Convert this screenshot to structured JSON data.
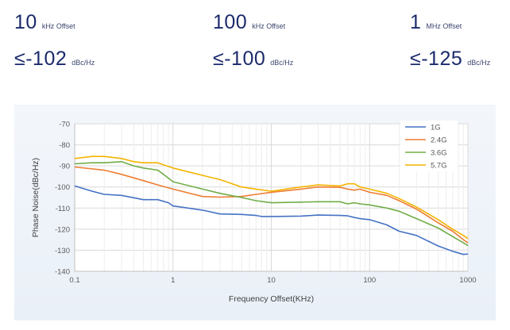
{
  "specs": [
    {
      "offset_value": "10",
      "offset_unit": "kHz Offset",
      "noise_value": "≤-102",
      "noise_unit": "dBc/Hz"
    },
    {
      "offset_value": "100",
      "offset_unit": "kHz Offset",
      "noise_value": "≤-100",
      "noise_unit": "dBc/Hz"
    },
    {
      "offset_value": "1",
      "offset_unit": "MHz Offset",
      "noise_value": "≤-125",
      "noise_unit": "dBc/Hz"
    }
  ],
  "chart_data": {
    "type": "line",
    "title": "",
    "xlabel": "Frequency Offset(KHz)",
    "ylabel": "Phase Noise(dBc/Hz)",
    "x_scale": "log",
    "xlim": [
      0.1,
      1000
    ],
    "ylim": [
      -140,
      -70
    ],
    "x_ticks": [
      "0.1",
      "1",
      "10",
      "100",
      "1000"
    ],
    "y_ticks": [
      "-70",
      "-80",
      "-90",
      "-100",
      "-110",
      "-120",
      "-130",
      "-140"
    ],
    "grid": true,
    "legend_position": "top-right",
    "series": [
      {
        "name": "1G",
        "color": "#4472c4",
        "x": [
          0.1,
          0.15,
          0.2,
          0.3,
          0.5,
          0.7,
          0.9,
          1,
          2,
          3,
          5,
          7,
          8,
          10,
          20,
          30,
          50,
          60,
          70,
          80,
          100,
          150,
          200,
          300,
          500,
          700,
          900,
          1000
        ],
        "y": [
          -99.5,
          -102,
          -103.5,
          -104,
          -106,
          -106,
          -107.5,
          -109,
          -111,
          -112.8,
          -113,
          -113.5,
          -114,
          -114,
          -113.8,
          -113.3,
          -113.5,
          -113.7,
          -114.5,
          -115,
          -115.5,
          -118,
          -121,
          -123,
          -128,
          -130.5,
          -132,
          -131.8
        ]
      },
      {
        "name": "2.4G",
        "color": "#ed7d31",
        "x": [
          0.1,
          0.2,
          0.3,
          0.5,
          0.7,
          1,
          2,
          3,
          5,
          7,
          10,
          20,
          30,
          50,
          60,
          70,
          80,
          100,
          150,
          200,
          300,
          500,
          700,
          900,
          1000
        ],
        "y": [
          -90.5,
          -92,
          -94,
          -97,
          -99,
          -101,
          -104.5,
          -104.8,
          -104.5,
          -103.5,
          -102.5,
          -101,
          -100,
          -100.2,
          -101,
          -101.5,
          -101,
          -102.5,
          -104,
          -106.5,
          -110.5,
          -117,
          -121,
          -125,
          -126.5
        ]
      },
      {
        "name": "3.6G",
        "color": "#70ad47",
        "x": [
          0.1,
          0.15,
          0.2,
          0.3,
          0.4,
          0.5,
          0.7,
          0.8,
          1,
          2,
          3,
          5,
          7,
          10,
          20,
          30,
          50,
          60,
          70,
          80,
          100,
          150,
          200,
          300,
          500,
          700,
          900,
          1000
        ],
        "y": [
          -89,
          -88.5,
          -88.5,
          -88,
          -90,
          -91,
          -92,
          -94,
          -97.5,
          -101,
          -103,
          -105,
          -106.5,
          -107.5,
          -107.2,
          -107,
          -107,
          -108,
          -107.5,
          -108,
          -108.5,
          -110,
          -111.5,
          -115,
          -119.5,
          -123.5,
          -126.5,
          -127.8
        ]
      },
      {
        "name": "5.7G",
        "color": "#f4b400",
        "x": [
          0.1,
          0.15,
          0.2,
          0.3,
          0.4,
          0.5,
          0.7,
          0.8,
          1,
          2,
          3,
          5,
          7,
          10,
          20,
          30,
          50,
          60,
          70,
          80,
          100,
          150,
          200,
          300,
          500,
          700,
          900,
          1000
        ],
        "y": [
          -86.5,
          -85.5,
          -85.5,
          -86.5,
          -88,
          -88.5,
          -88.5,
          -89.5,
          -91,
          -94.5,
          -96.5,
          -100,
          -101,
          -102,
          -100,
          -99,
          -99.5,
          -98.5,
          -98.5,
          -100,
          -101,
          -103,
          -105.5,
          -109.5,
          -115.5,
          -120,
          -123,
          -124.5
        ]
      }
    ]
  }
}
